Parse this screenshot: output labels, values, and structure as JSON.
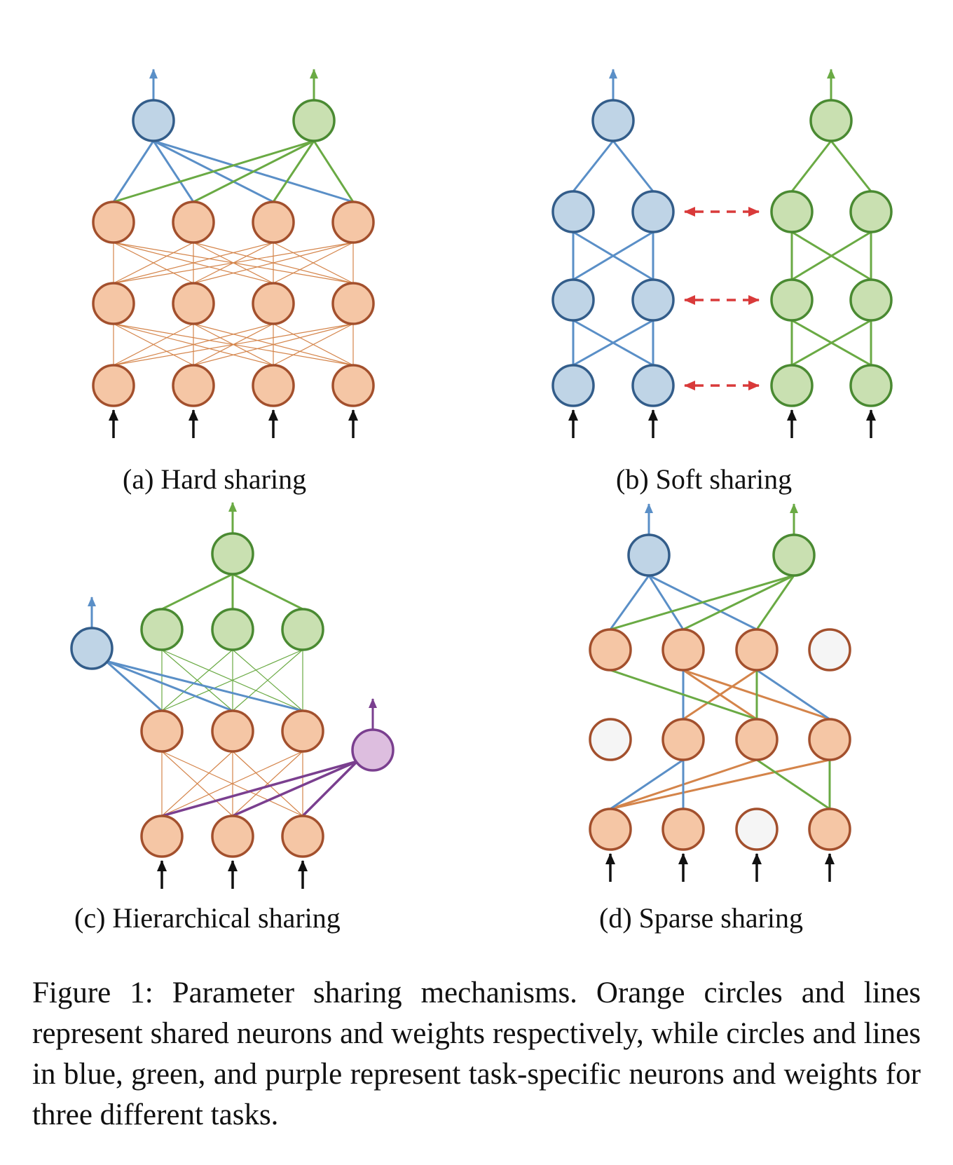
{
  "colors": {
    "shared_fill": "#f5c6a5",
    "shared_stroke": "#a3502d",
    "shared_line": "#d4844a",
    "blue_fill": "#bfd4e6",
    "blue_stroke": "#335d8a",
    "blue_line": "#5a8fc7",
    "green_fill": "#c9e0b1",
    "green_stroke": "#4a8a32",
    "green_line": "#6aaa44",
    "purple_fill": "#ddbedf",
    "purple_stroke": "#7a3f8f",
    "purple_line": "#7a3f8f",
    "inactive_fill": "#f5f5f5",
    "inactive_stroke": "#a3502d",
    "share_arrow": "#d93a3a",
    "input_arrow": "#111111"
  },
  "subfigures": {
    "a": {
      "caption": "(a) Hard sharing"
    },
    "b": {
      "caption": "(b) Soft sharing"
    },
    "c": {
      "caption": "(c) Hierarchical sharing"
    },
    "d": {
      "caption": "(d) Sparse sharing"
    }
  },
  "figure_caption": "Figure 1: Parameter sharing mechanisms. Orange circles and lines represent shared neurons and weights respectively, while circles and lines in blue, green, and purple represent task-specific neurons and weights for three different tasks."
}
